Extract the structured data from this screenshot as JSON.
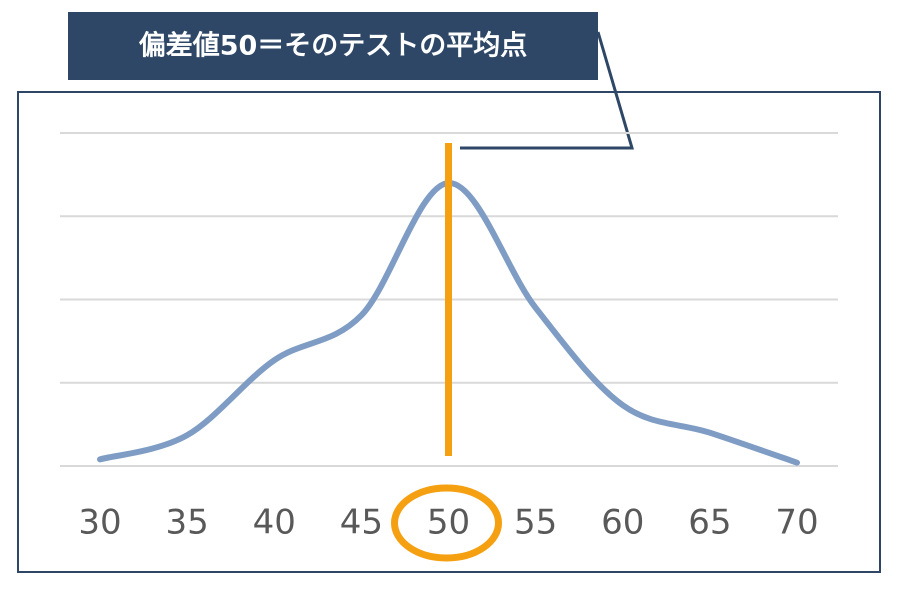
{
  "chart_data": {
    "type": "line",
    "annotation": {
      "text": "偏差値50＝そのテストの平均点",
      "x": "50",
      "color": "#f5a011"
    },
    "categories": [
      "30",
      "35",
      "40",
      "45",
      "50",
      "55",
      "60",
      "65",
      "70"
    ],
    "series": [
      {
        "color": "#7f9dc4",
        "values": [
          0.08,
          0.37,
          1.27,
          1.81,
          3.4,
          1.9,
          0.73,
          0.4,
          0.04
        ]
      }
    ],
    "ylim": [
      0,
      4
    ],
    "yticks": [
      0,
      1,
      2,
      3,
      4
    ],
    "grid": true
  }
}
